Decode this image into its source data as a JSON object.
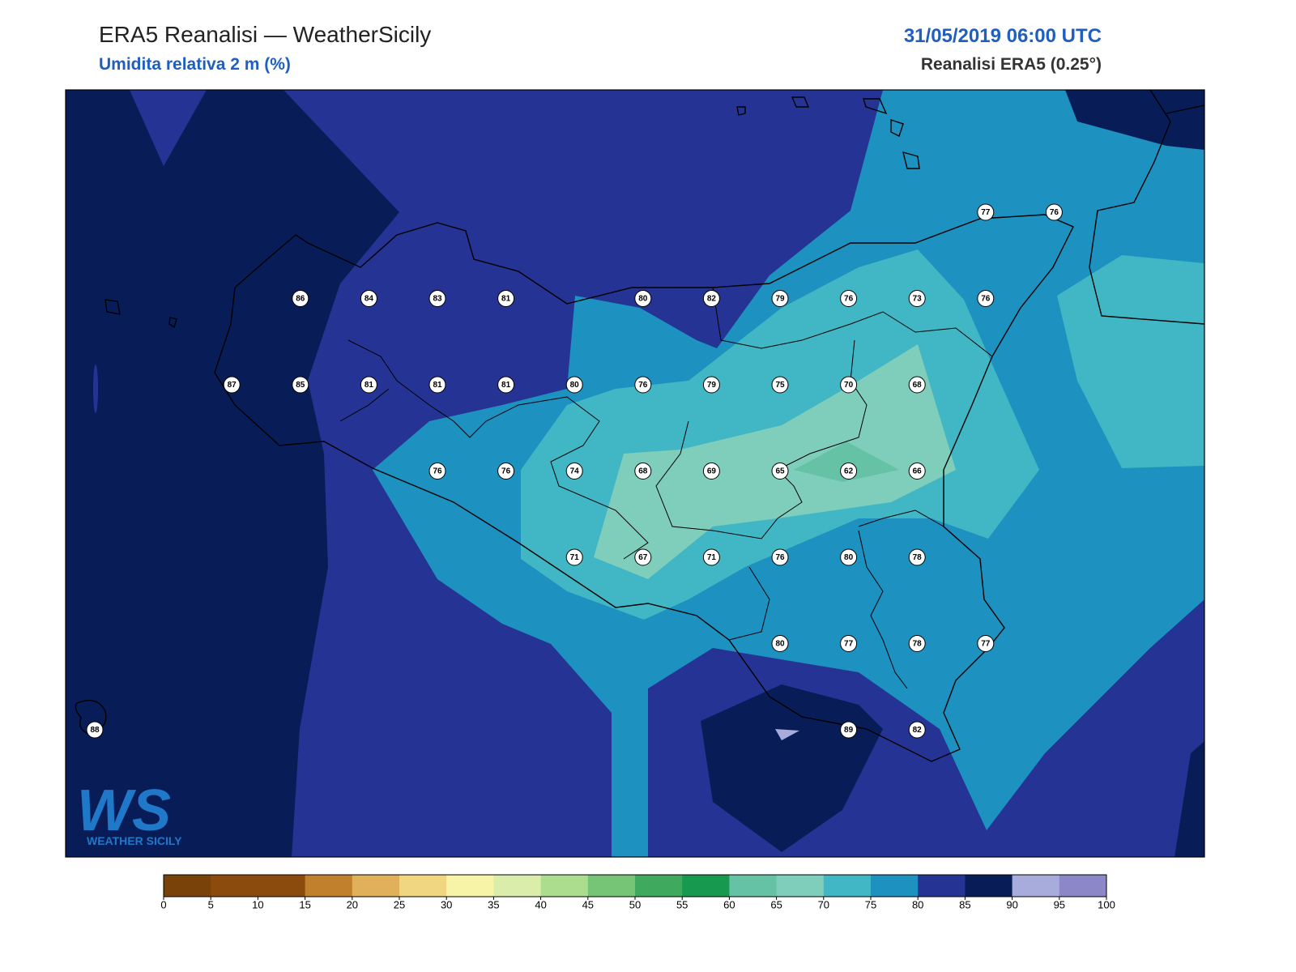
{
  "header": {
    "title": "ERA5 Reanalisi — WeatherSicily",
    "subtitle": "Umidita relativa 2 m (%)",
    "datetime": "31/05/2019 06:00 UTC",
    "source": "Reanalisi ERA5 (0.25°)"
  },
  "map": {
    "stations": [
      77,
      76,
      86,
      84,
      83,
      81,
      80,
      82,
      79,
      76,
      73,
      76,
      87,
      85,
      81,
      81,
      81,
      80,
      76,
      79,
      75,
      70,
      68,
      76,
      76,
      74,
      68,
      69,
      65,
      62,
      66,
      71,
      67,
      71,
      76,
      80,
      78,
      80,
      77,
      78,
      77,
      88,
      89,
      82
    ]
  },
  "colorbar": {
    "ticks": [
      0,
      5,
      10,
      15,
      20,
      25,
      30,
      35,
      40,
      45,
      50,
      55,
      60,
      65,
      70,
      75,
      80,
      85,
      90,
      95,
      100
    ],
    "colors": [
      "#784209",
      "#8b4b0d",
      "#8b4b0d",
      "#c0802c",
      "#e0b05a",
      "#f0d680",
      "#f7f4a8",
      "#daedaa",
      "#acdc8e",
      "#76c476",
      "#3faa5d",
      "#179950",
      "#66c2a4",
      "#7fcdbb",
      "#41b6c4",
      "#1d91c0",
      "#253494",
      "#081d58",
      "#a7acdc",
      "#8c88c8"
    ]
  },
  "logo": {
    "letters": "WS",
    "text": "WEATHER SICILY"
  }
}
